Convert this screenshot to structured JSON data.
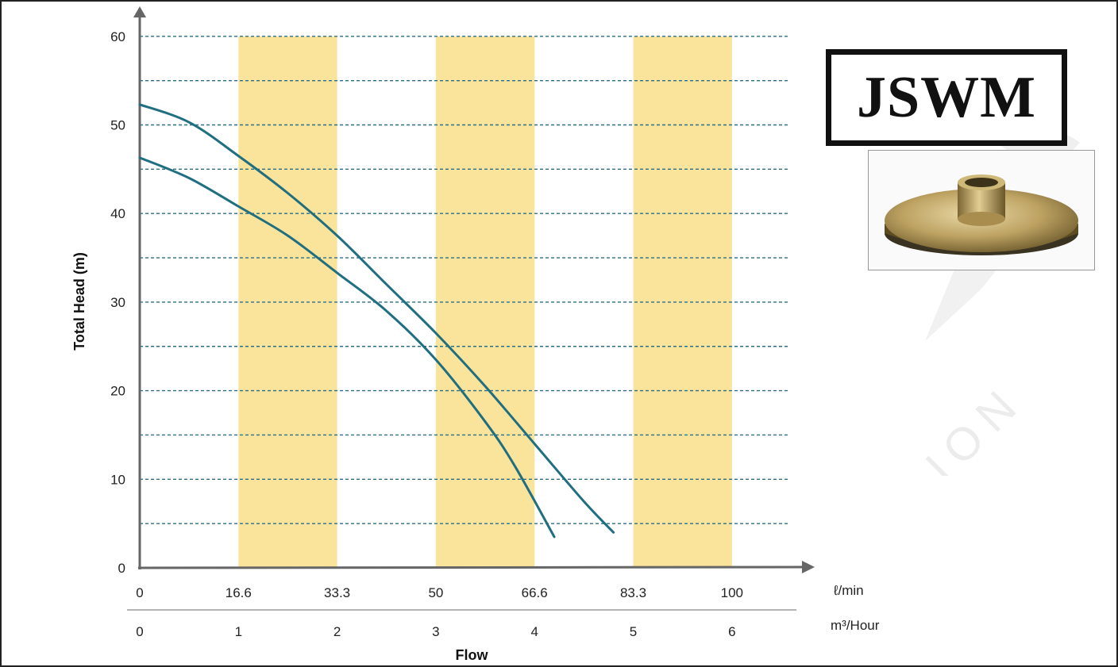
{
  "brand": {
    "name": "JSWM"
  },
  "colors": {
    "band": "#fae39a",
    "grid": "#2c6f86",
    "curve": "#1f6f80",
    "axis": "#666666"
  },
  "chart_data": {
    "type": "line",
    "ylabel": "Total Head (m)",
    "xlabel": "Flow",
    "x_unit_primary": "ℓ/min",
    "x_unit_secondary": "m³/Hour",
    "ylim": [
      0,
      60
    ],
    "xlim": [
      0,
      6.6
    ],
    "y_ticks": [
      0,
      10,
      20,
      30,
      40,
      50,
      60
    ],
    "y_gridlines": [
      5,
      10,
      15,
      20,
      25,
      30,
      35,
      40,
      45,
      50,
      55,
      60
    ],
    "x_ticks_m3h": [
      0,
      1,
      2,
      3,
      4,
      5,
      6
    ],
    "x_tick_labels_lmin": [
      "0",
      "16.6",
      "33.3",
      "50",
      "66.6",
      "83.3",
      "100"
    ],
    "x_tick_labels_m3h": [
      "0",
      "1",
      "2",
      "3",
      "4",
      "5",
      "6"
    ],
    "highlight_bands_m3h": [
      [
        1,
        2
      ],
      [
        3,
        4
      ],
      [
        5,
        6
      ]
    ],
    "grid": true,
    "series": [
      {
        "x": [
          0,
          0.5,
          1,
          1.5,
          2,
          2.5,
          3,
          3.5,
          4,
          4.5,
          4.8
        ],
        "y": [
          52.3,
          50.3,
          46.5,
          42.3,
          37.5,
          32.0,
          26.5,
          20.5,
          14.0,
          7.5,
          4.0
        ]
      },
      {
        "x": [
          0,
          0.5,
          1,
          1.5,
          2,
          2.5,
          3,
          3.5,
          3.8,
          4.2
        ],
        "y": [
          46.3,
          44.0,
          40.8,
          37.5,
          33.3,
          29.0,
          23.5,
          16.5,
          11.5,
          3.5
        ]
      }
    ]
  }
}
